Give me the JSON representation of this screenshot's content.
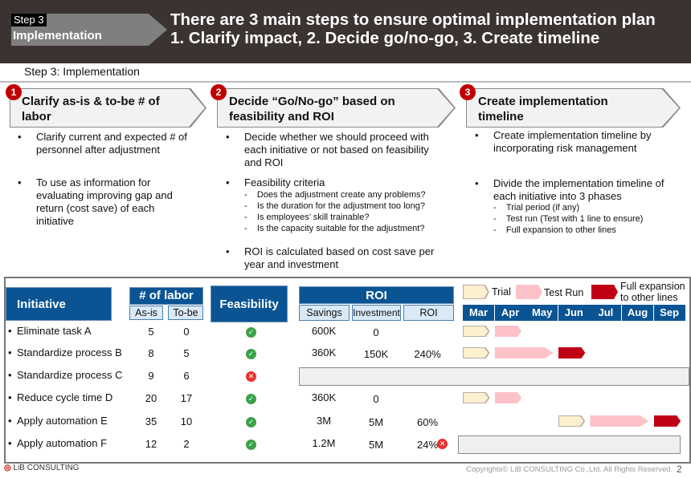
{
  "header": {
    "step_tag": "Step 3",
    "step_label": "Implementation",
    "title_line1": "There are 3 main steps to ensure optimal implementation plan",
    "title_line2": "1. Clarify impact, 2. Decide go/no-go, 3. Create timeline"
  },
  "subtitle": "Step 3: Implementation",
  "steps": [
    {
      "num": "1",
      "title": "Clarify as-is & to-be # of labor",
      "bullets": [
        "Clarify current and expected # of personnel after adjustment",
        "To use as information for evaluating improving gap and return (cost save) of each initiative"
      ]
    },
    {
      "num": "2",
      "title": "Decide “Go/No-go” based on feasibility and ROI",
      "bullets": [
        "Decide whether we should proceed with each initiative or not based on feasibility and ROI",
        "Feasibility criteria",
        "ROI is calculated based on cost save per year and investment"
      ],
      "criteria": [
        "Does the adjustment create any problems?",
        "Is the duration for the adjustment too long?",
        "Is employees’ skill trainable?",
        "Is the capacity suitable for the adjustment?"
      ]
    },
    {
      "num": "3",
      "title": "Create implementation timeline",
      "bullets": [
        "Create implementation timeline by incorporating risk management",
        "Divide the implementation timeline of each initiative into 3 phases"
      ],
      "phases": [
        "Trial period (if any)",
        "Test run (Test with 1 line to ensure)",
        "Full expansion to other lines"
      ]
    }
  ],
  "table": {
    "h_initiative": "Initiative",
    "h_labor": "# of labor",
    "h_asis": "As-is",
    "h_tobe": "To-be",
    "h_feas": "Feasibility",
    "h_roi": "ROI",
    "h_savings": "Savings",
    "h_invest": "Investment",
    "h_roi2": "ROI",
    "legend": {
      "trial": "Trial",
      "test": "Test Run",
      "full": "Full expansion to other lines"
    },
    "months": [
      "Mar",
      "Apr",
      "May",
      "Jun",
      "Jul",
      "Aug",
      "Sep"
    ],
    "rows": [
      {
        "name": "Eliminate task A",
        "asis": "5",
        "tobe": "0",
        "feasible": true,
        "savings": "600K",
        "invest": "0",
        "roi": "",
        "gantt": [
          [
            "trial",
            0,
            1
          ],
          [
            "test",
            1,
            1
          ]
        ]
      },
      {
        "name": "Standardize process B",
        "asis": "8",
        "tobe": "5",
        "feasible": true,
        "savings": "360K",
        "invest": "150K",
        "roi": "240%",
        "gantt": [
          [
            "trial",
            0,
            1
          ],
          [
            "test",
            1,
            2
          ],
          [
            "full",
            3,
            1
          ]
        ]
      },
      {
        "name": "Standardize process C",
        "asis": "9",
        "tobe": "6",
        "feasible": false,
        "savings": "",
        "invest": "",
        "roi": "",
        "gantt": []
      },
      {
        "name": "Reduce cycle time D",
        "asis": "20",
        "tobe": "17",
        "feasible": true,
        "savings": "360K",
        "invest": "0",
        "roi": "",
        "gantt": [
          [
            "trial",
            0,
            1
          ],
          [
            "test",
            1,
            1
          ]
        ]
      },
      {
        "name": "Apply automation E",
        "asis": "35",
        "tobe": "10",
        "feasible": true,
        "savings": "3M",
        "invest": "5M",
        "roi": "60%",
        "gantt": [
          [
            "trial",
            3,
            1
          ],
          [
            "test",
            4,
            2
          ],
          [
            "full",
            6,
            1
          ]
        ]
      },
      {
        "name": "Apply automation F",
        "asis": "12",
        "tobe": "2",
        "feasible": true,
        "savings": "1.2M",
        "invest": "5M",
        "roi": "24%",
        "roi_fail": true,
        "gantt": []
      }
    ]
  },
  "footer": {
    "logo": "LiB CONSULTING",
    "copyright": "Copyrights© LiB CONSULTING Co.,Ltd.  All Rights Reserved.",
    "page": "2"
  }
}
